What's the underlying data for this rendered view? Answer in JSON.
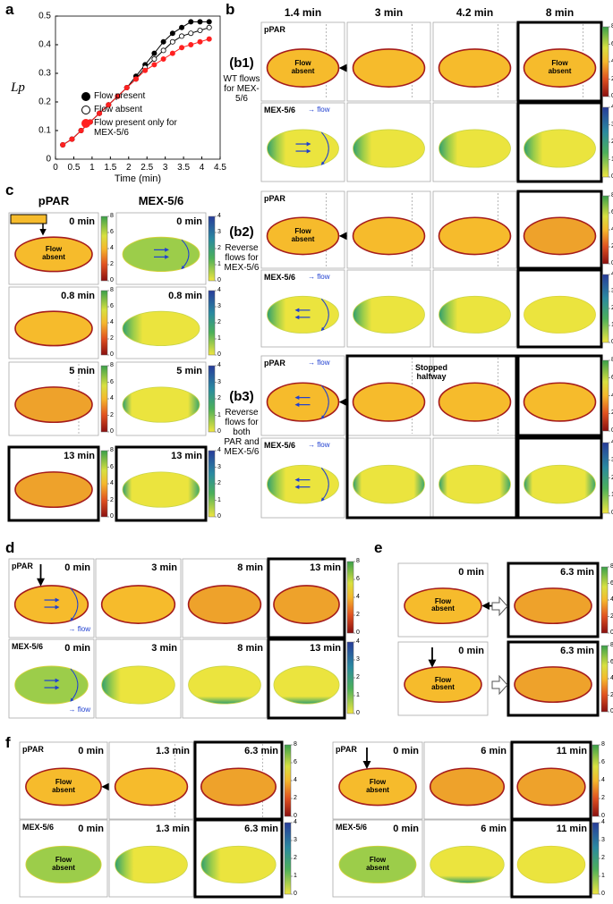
{
  "chart_data": {
    "type": "line",
    "ylabel": "Lp",
    "xlabel": "Time (min)",
    "x": [
      0.2,
      0.45,
      0.7,
      0.95,
      1.2,
      1.45,
      1.7,
      1.95,
      2.2,
      2.45,
      2.7,
      2.95,
      3.2,
      3.45,
      3.7,
      3.95,
      4.2
    ],
    "series": [
      {
        "name": "Flow present",
        "color": "#000000",
        "edge": "#000000",
        "values": [
          0.05,
          0.07,
          0.1,
          0.13,
          0.16,
          0.19,
          0.22,
          0.25,
          0.29,
          0.33,
          0.37,
          0.41,
          0.44,
          0.46,
          0.48,
          0.48,
          0.48
        ]
      },
      {
        "name": "Flow absent",
        "color": "#ffffff",
        "edge": "#000000",
        "values": [
          0.05,
          0.07,
          0.1,
          0.13,
          0.16,
          0.19,
          0.22,
          0.25,
          0.28,
          0.32,
          0.35,
          0.38,
          0.41,
          0.43,
          0.44,
          0.45,
          0.46
        ]
      },
      {
        "name": "Flow present only for MEX-5/6",
        "color": "#ff2020",
        "edge": "#ff2020",
        "values": [
          0.05,
          0.07,
          0.1,
          0.13,
          0.16,
          0.19,
          0.22,
          0.25,
          0.28,
          0.31,
          0.33,
          0.35,
          0.37,
          0.39,
          0.4,
          0.41,
          0.42
        ]
      }
    ],
    "xlim": [
      0,
      4.5
    ],
    "xticks": [
      0,
      0.5,
      1,
      1.5,
      2,
      2.5,
      3,
      3.5,
      4,
      4.5
    ],
    "ylim": [
      0,
      0.5
    ],
    "yticks": [
      0,
      0.1,
      0.2,
      0.3,
      0.4,
      0.5
    ],
    "grid": false,
    "legend": "lower right"
  },
  "panel_labels": [
    "a",
    "b",
    "c",
    "d",
    "e",
    "f"
  ],
  "species": {
    "par": "pPAR",
    "mex": "MEX-5/6"
  },
  "flow_label": "→ flow",
  "flow_absent": "Flow absent",
  "colorbar_par": {
    "lim": [
      0,
      8
    ],
    "ticks": [
      0,
      2,
      4,
      6,
      8
    ]
  },
  "colorbar_mex": {
    "lim": [
      0,
      4
    ],
    "ticks": [
      0,
      1,
      2,
      3,
      4
    ]
  },
  "b": {
    "times": [
      "1.4 min",
      "3 min",
      "4.2 min",
      "8 min"
    ],
    "rows": [
      {
        "label": "(b1)",
        "desc": "WT flows for MEX-5/6"
      },
      {
        "label": "(b2)",
        "desc": "Reverse flows for MEX-5/6"
      },
      {
        "label": "(b3)",
        "desc": "Reverse flows for both PAR and MEX-5/6"
      }
    ],
    "stopped": "Stopped halfway"
  },
  "c": {
    "times": [
      "0 min",
      "0.8 min",
      "5 min",
      "13 min"
    ]
  },
  "d": {
    "times": [
      "0 min",
      "3 min",
      "8 min",
      "13 min"
    ]
  },
  "e": {
    "times": [
      "0 min",
      "6.3 min"
    ]
  },
  "f": {
    "left_times": [
      "0 min",
      "1.3 min",
      "6.3 min"
    ],
    "right_times": [
      "0 min",
      "6 min",
      "11 min"
    ]
  }
}
